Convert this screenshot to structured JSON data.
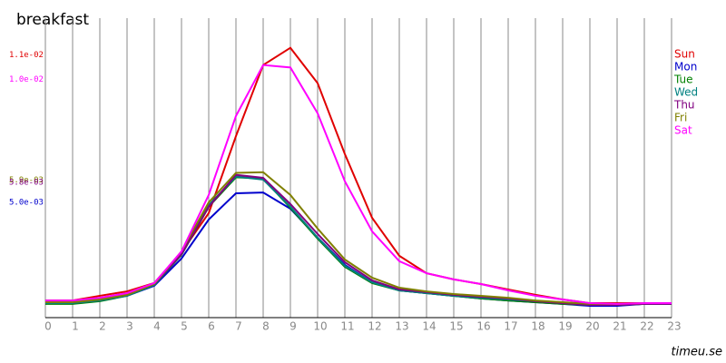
{
  "chart_data": {
    "type": "line",
    "title": "breakfast",
    "source": "timeu.se",
    "x": [
      0,
      1,
      2,
      3,
      4,
      5,
      6,
      7,
      8,
      9,
      10,
      11,
      12,
      13,
      14,
      15,
      16,
      17,
      18,
      19,
      20,
      21,
      22,
      23
    ],
    "xlim": [
      0,
      23
    ],
    "xticks": [
      0,
      1,
      2,
      3,
      4,
      5,
      6,
      7,
      8,
      9,
      10,
      11,
      12,
      13,
      14,
      15,
      16,
      17,
      18,
      19,
      20,
      21,
      22,
      23
    ],
    "ylim": [
      0,
      0.0111
    ],
    "yticks": [
      {
        "value": 0.011,
        "label": "1.1e-02",
        "color": "#e00000"
      },
      {
        "value": 0.01,
        "label": "1.0e-02",
        "color": "#ff00ff"
      },
      {
        "value": 0.0059,
        "label": "5.9e-03",
        "color": "#808000"
      },
      {
        "value": 0.0058,
        "label": "5.8e-03",
        "color": "#800080"
      },
      {
        "value": 0.005,
        "label": "5.0e-03",
        "color": "#0000cc"
      }
    ],
    "grid": true,
    "legend": "right",
    "series": [
      {
        "name": "Sun",
        "color": "#e00000",
        "values": [
          0.0007,
          0.0007,
          0.00089,
          0.00107,
          0.00141,
          0.00267,
          0.00426,
          0.0074,
          0.0103,
          0.011,
          0.00956,
          0.00667,
          0.00407,
          0.00252,
          0.00181,
          0.00156,
          0.00137,
          0.00115,
          0.00093,
          0.00074,
          0.00059,
          0.00059,
          0.00059,
          0.00059
        ]
      },
      {
        "name": "Mon",
        "color": "#0000cc",
        "values": [
          0.00059,
          0.00059,
          0.0007,
          0.00089,
          0.0013,
          0.00241,
          0.004,
          0.00507,
          0.0051,
          0.00444,
          0.00326,
          0.00215,
          0.00144,
          0.00111,
          0.001,
          0.00089,
          0.00078,
          0.0007,
          0.00063,
          0.00056,
          0.00048,
          0.00048,
          0.00056,
          0.00056
        ]
      },
      {
        "name": "Tue",
        "color": "#008000",
        "values": [
          0.00056,
          0.00056,
          0.00067,
          0.00089,
          0.00133,
          0.00256,
          0.00452,
          0.00572,
          0.00567,
          0.00448,
          0.00322,
          0.00207,
          0.00141,
          0.00111,
          0.001,
          0.00089,
          0.00078,
          0.0007,
          0.00063,
          0.00056,
          0.00052,
          0.00052,
          0.00056,
          0.00056
        ]
      },
      {
        "name": "Wed",
        "color": "#008080",
        "values": [
          0.00059,
          0.00059,
          0.0007,
          0.00089,
          0.00133,
          0.00259,
          0.00459,
          0.00575,
          0.00563,
          0.00452,
          0.00326,
          0.00211,
          0.00144,
          0.00111,
          0.001,
          0.00089,
          0.00081,
          0.00074,
          0.00067,
          0.00059,
          0.00052,
          0.00052,
          0.00056,
          0.00056
        ]
      },
      {
        "name": "Thu",
        "color": "#800080",
        "values": [
          0.00063,
          0.00063,
          0.00074,
          0.00093,
          0.00137,
          0.00259,
          0.00452,
          0.00582,
          0.0057,
          0.00463,
          0.00341,
          0.00226,
          0.00152,
          0.00115,
          0.00104,
          0.00093,
          0.00085,
          0.00078,
          0.00067,
          0.00059,
          0.00052,
          0.00052,
          0.00056,
          0.00056
        ]
      },
      {
        "name": "Fri",
        "color": "#808000",
        "values": [
          0.00063,
          0.00063,
          0.00074,
          0.00093,
          0.00137,
          0.0027,
          0.0047,
          0.0059,
          0.00593,
          0.005,
          0.00363,
          0.00237,
          0.00163,
          0.00122,
          0.00107,
          0.00096,
          0.00089,
          0.00081,
          0.0007,
          0.00063,
          0.00056,
          0.00056,
          0.00059,
          0.00059
        ]
      },
      {
        "name": "Sat",
        "color": "#ff00ff",
        "values": [
          0.0007,
          0.0007,
          0.00081,
          0.001,
          0.00141,
          0.0027,
          0.005,
          0.00822,
          0.0103,
          0.0102,
          0.00833,
          0.00556,
          0.00352,
          0.0023,
          0.00181,
          0.00156,
          0.00137,
          0.00111,
          0.00089,
          0.00074,
          0.00059,
          0.00056,
          0.00059,
          0.00059
        ]
      }
    ]
  }
}
